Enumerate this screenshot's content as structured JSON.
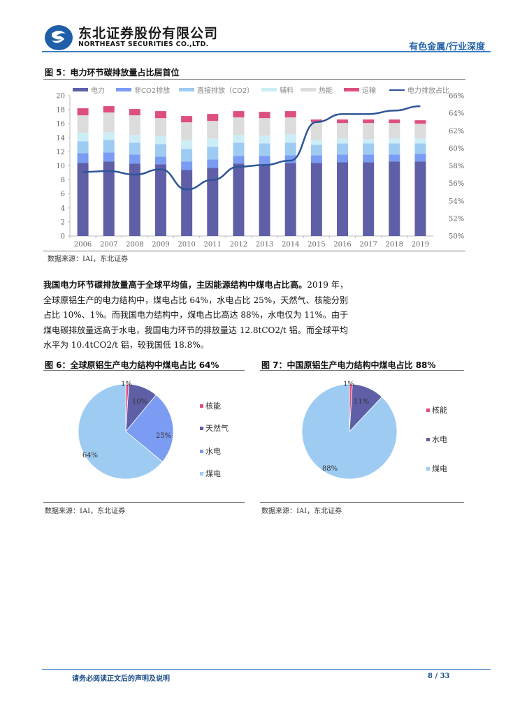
{
  "header": {
    "company_cn": "东北证券股份有限公司",
    "company_en": "NORTHEAST SECURITIES CO.,LTD.",
    "section": "有色金属/行业深度",
    "brand_color": "#1f5fa8"
  },
  "figure5": {
    "title": "图 5：电力环节碳排放量占比居首位",
    "source": "数据来源：IAI，东北证券"
  },
  "paragraph": {
    "bold": "我国电力环节碳排放量高于全球平均值，主因能源结构中煤电占比高。",
    "text": "2019 年，全球原铝生产的电力结构中，煤电占比 64%，水电占比 25%，天然气、核能分别占比 10%、1%。而我国电力结构中，煤电占比高达 88%，水电仅为 11%。由于煤电碳排放量远高于水电，我国电力环节的排放量达 12.8tCO2/t 铝。而全球平均水平为 10.4tCO2/t 铝，较我国低 18.8%。"
  },
  "figure6": {
    "title": "图 6：全球原铝生产电力结构中煤电占比 64%",
    "source": "数据来源：IAI，东北证券"
  },
  "figure7": {
    "title": "图 7：中国原铝生产电力结构中煤电占比 88%",
    "source": "数据来源：IAI，东北证券"
  },
  "footer": {
    "disclaimer": "请务必阅读正文后的声明及说明",
    "page": "8 / 33"
  },
  "chart_data": [
    {
      "type": "bar",
      "stacked": true,
      "title": "电力环节碳排放量占比居首位",
      "categories": [
        "2006",
        "2007",
        "2008",
        "2009",
        "2010",
        "2011",
        "2012",
        "2013",
        "2014",
        "2015",
        "2016",
        "2017",
        "2018",
        "2019"
      ],
      "series": [
        {
          "name": "电力",
          "color": "#5f5fa8",
          "values": [
            10.4,
            10.6,
            10.3,
            10.2,
            9.4,
            9.7,
            10.3,
            10.2,
            10.4,
            10.4,
            10.5,
            10.5,
            10.6,
            10.6
          ]
        },
        {
          "name": "非CO2排放",
          "color": "#7b9cf2",
          "values": [
            1.4,
            1.3,
            1.3,
            1.1,
            1.2,
            1.2,
            1.1,
            1.2,
            1.1,
            1.1,
            1.1,
            1.1,
            1.0,
            1.1
          ]
        },
        {
          "name": "直接排放（CO2）",
          "color": "#9ecbf2",
          "values": [
            1.7,
            1.8,
            1.7,
            1.8,
            1.8,
            1.8,
            1.9,
            1.8,
            1.8,
            1.5,
            1.6,
            1.6,
            1.6,
            1.5
          ]
        },
        {
          "name": "辅料",
          "color": "#ccedf6",
          "values": [
            1.2,
            1.1,
            1.1,
            1.1,
            1.2,
            1.2,
            1.1,
            1.1,
            1.2,
            0.7,
            0.7,
            0.6,
            0.7,
            0.7
          ]
        },
        {
          "name": "热能",
          "color": "#dcdcdc",
          "values": [
            2.5,
            2.8,
            2.8,
            2.6,
            2.6,
            2.5,
            2.5,
            2.5,
            2.4,
            2.5,
            2.2,
            2.3,
            2.2,
            2.1
          ]
        },
        {
          "name": "运输",
          "color": "#dd4f7f",
          "values": [
            1.0,
            0.9,
            0.9,
            1.0,
            0.9,
            1.0,
            0.9,
            0.9,
            0.9,
            0.4,
            0.5,
            0.5,
            0.5,
            0.5
          ]
        },
        {
          "name": "电力排放占比",
          "type": "line",
          "axis": "right",
          "color": "#2e5597",
          "values": [
            57.3,
            57.4,
            57.0,
            57.6,
            55.3,
            56.4,
            57.9,
            58.1,
            58.6,
            63.0,
            63.9,
            63.9,
            64.3,
            64.8
          ]
        }
      ],
      "ylim": [
        0,
        20
      ],
      "yticks": [
        0,
        2,
        4,
        6,
        8,
        10,
        12,
        14,
        16,
        18,
        20
      ],
      "y2lim": [
        50,
        66
      ],
      "y2ticks": [
        "50%",
        "52%",
        "54%",
        "56%",
        "58%",
        "60%",
        "62%",
        "64%",
        "66%"
      ],
      "legend_position": "top"
    },
    {
      "type": "pie",
      "title": "全球原铝生产电力结构中煤电占比 64%",
      "categories": [
        "核能",
        "天然气",
        "水电",
        "煤电"
      ],
      "values": [
        1,
        10,
        25,
        64
      ],
      "labels": [
        "1%",
        "10%",
        "25%",
        "64%"
      ],
      "colors": [
        "#dd4f7f",
        "#5f5fa8",
        "#7b9cf2",
        "#9ecbf2"
      ]
    },
    {
      "type": "pie",
      "title": "中国原铝生产电力结构中煤电占比 88%",
      "categories": [
        "核能",
        "水电",
        "煤电"
      ],
      "values": [
        1,
        11,
        88
      ],
      "labels": [
        "1%",
        "11%",
        "88%"
      ],
      "colors": [
        "#dd4f7f",
        "#5f5fa8",
        "#9ecbf2"
      ]
    }
  ]
}
